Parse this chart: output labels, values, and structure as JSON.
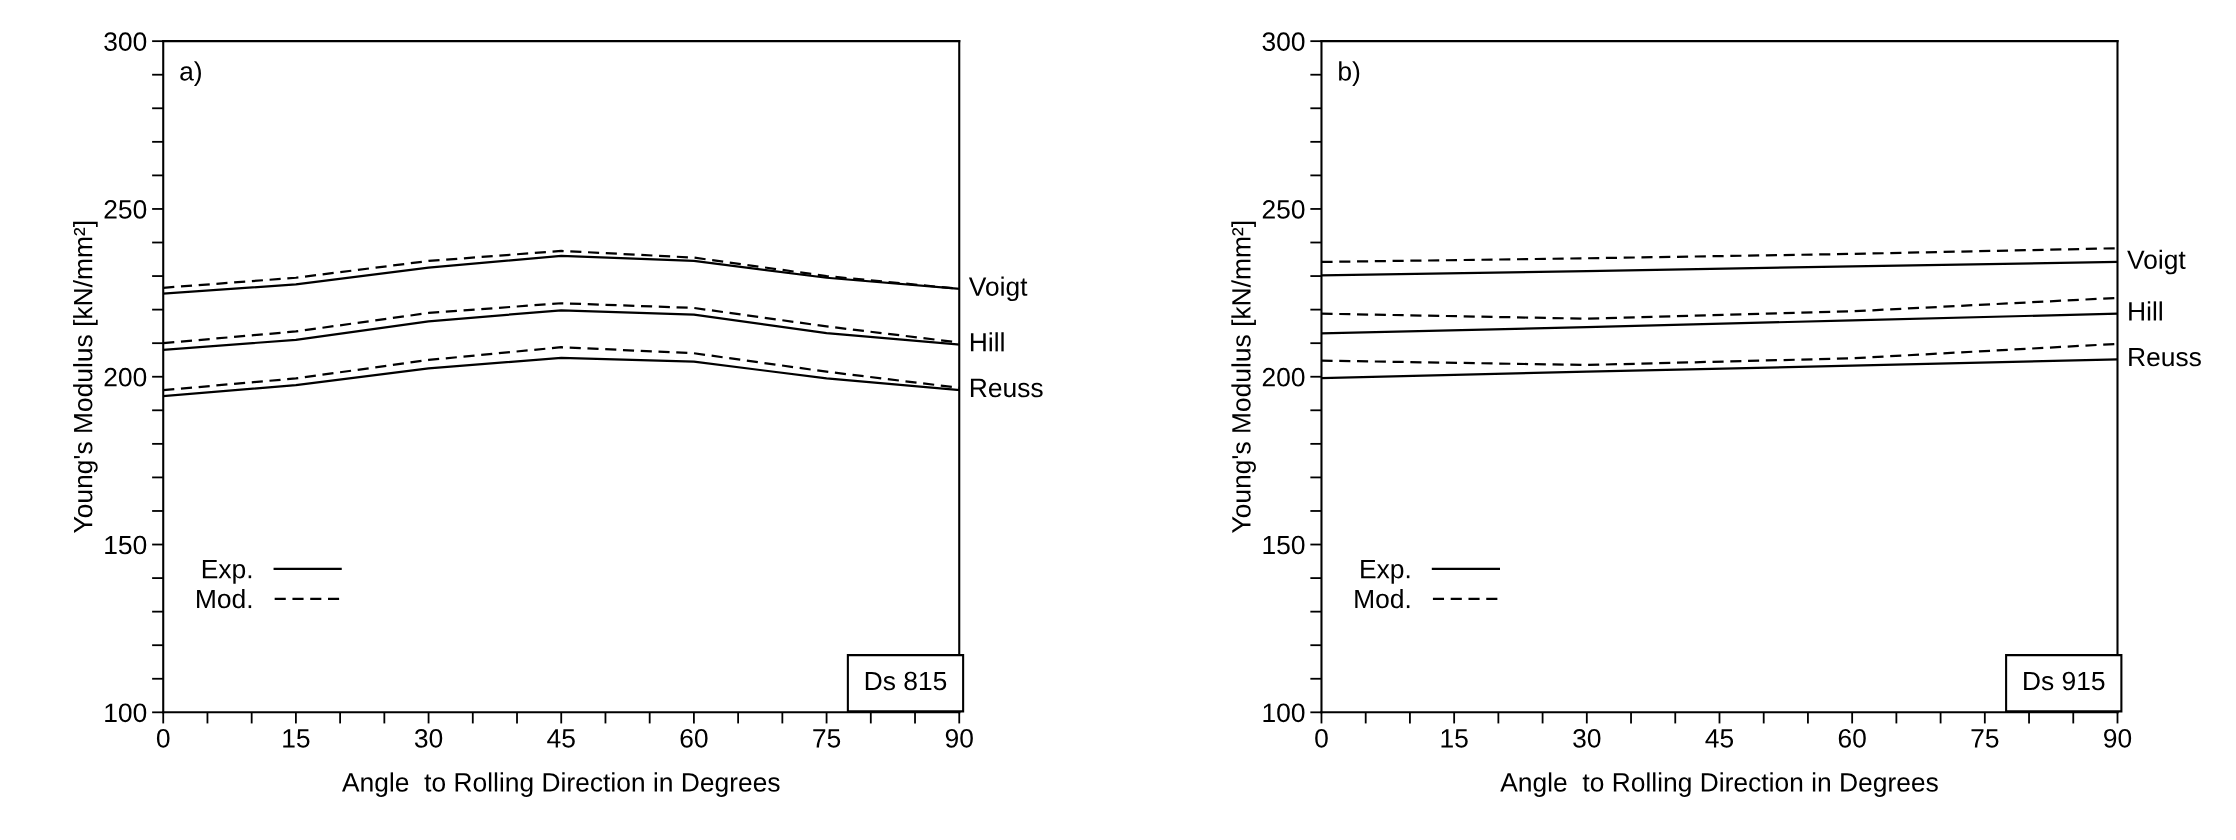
{
  "chart_data": [
    {
      "type": "line",
      "xlabel": "Angle  to Rolling Direction in Degrees",
      "ylabel": "Young's Modulus [kN/mm²]",
      "annotations": [
        "a)",
        "Exp.",
        "Mod.",
        "Ds 815"
      ],
      "legend": "right",
      "xlim": [
        0,
        90
      ],
      "ylim": [
        100,
        300
      ],
      "xticks": [
        0,
        {
          "value": 5,
          "label": null
        },
        {
          "value": 10,
          "label": null
        },
        15,
        {
          "value": 20,
          "label": null
        },
        {
          "value": 25,
          "label": null
        },
        30,
        {
          "value": 35,
          "label": null
        },
        {
          "value": 40,
          "label": null
        },
        45,
        {
          "value": 50,
          "label": null
        },
        {
          "value": 55,
          "label": null
        },
        60,
        {
          "value": 65,
          "label": null
        },
        {
          "value": 70,
          "label": null
        },
        75,
        {
          "value": 80,
          "label": null
        },
        {
          "value": 85,
          "label": null
        },
        90
      ],
      "yticks": [
        100,
        {
          "value": 110,
          "label": null
        },
        {
          "value": 120,
          "label": null
        },
        {
          "value": 130,
          "label": null
        },
        {
          "value": 140,
          "label": null
        },
        150,
        {
          "value": 160,
          "label": null
        },
        {
          "value": 170,
          "label": null
        },
        {
          "value": 180,
          "label": null
        },
        {
          "value": 190,
          "label": null
        },
        200,
        {
          "value": 210,
          "label": null
        },
        {
          "value": 220,
          "label": null
        },
        {
          "value": 230,
          "label": null
        },
        {
          "value": 240,
          "label": null
        },
        250,
        {
          "value": 260,
          "label": null
        },
        {
          "value": 270,
          "label": null
        },
        {
          "value": 280,
          "label": null
        },
        {
          "value": 290,
          "label": null
        },
        300
      ],
      "grid": false,
      "x": [
        0,
        15,
        30,
        45,
        60,
        75,
        90
      ],
      "series": [
        {
          "name": "Voigt",
          "color": "#000000",
          "line_style": "solid",
          "values": [
            224.8,
            227.5,
            232.5,
            236,
            234.5,
            229.5,
            226.2
          ]
        },
        {
          "color": "#000000",
          "line_style": "dashed",
          "values": [
            226.5,
            229.5,
            234.5,
            237.5,
            235.5,
            230,
            226.2
          ]
        },
        {
          "name": "Hill",
          "color": "#000000",
          "line_style": "solid",
          "values": [
            208,
            211,
            216.5,
            219.8,
            218.5,
            213,
            209.6
          ]
        },
        {
          "color": "#000000",
          "line_style": "dashed",
          "values": [
            210,
            213.5,
            219,
            221.9,
            220.5,
            215,
            210.2
          ]
        },
        {
          "name": "Reuss",
          "color": "#000000",
          "line_style": "solid",
          "values": [
            194.2,
            197.5,
            202.5,
            205.6,
            204.5,
            199.5,
            196
          ]
        },
        {
          "color": "#000000",
          "line_style": "dashed",
          "values": [
            196,
            199.5,
            205,
            208.8,
            207,
            201.5,
            196.7
          ]
        }
      ]
    },
    {
      "type": "line",
      "xlabel": "Angle  to Rolling Direction in Degrees",
      "ylabel": "Young's Modulus [kN/mm²]",
      "annotations": [
        "b)",
        "Exp.",
        "Mod.",
        "Ds 915"
      ],
      "legend": "right",
      "xlim": [
        0,
        90
      ],
      "ylim": [
        100,
        300
      ],
      "xticks": [
        0,
        {
          "value": 5,
          "label": null
        },
        {
          "value": 10,
          "label": null
        },
        15,
        {
          "value": 20,
          "label": null
        },
        {
          "value": 25,
          "label": null
        },
        30,
        {
          "value": 35,
          "label": null
        },
        {
          "value": 40,
          "label": null
        },
        45,
        {
          "value": 50,
          "label": null
        },
        {
          "value": 55,
          "label": null
        },
        60,
        {
          "value": 65,
          "label": null
        },
        {
          "value": 70,
          "label": null
        },
        75,
        {
          "value": 80,
          "label": null
        },
        {
          "value": 85,
          "label": null
        },
        90
      ],
      "yticks": [
        100,
        {
          "value": 110,
          "label": null
        },
        {
          "value": 120,
          "label": null
        },
        {
          "value": 130,
          "label": null
        },
        {
          "value": 140,
          "label": null
        },
        150,
        {
          "value": 160,
          "label": null
        },
        {
          "value": 170,
          "label": null
        },
        {
          "value": 180,
          "label": null
        },
        {
          "value": 190,
          "label": null
        },
        200,
        {
          "value": 210,
          "label": null
        },
        {
          "value": 220,
          "label": null
        },
        {
          "value": 230,
          "label": null
        },
        {
          "value": 240,
          "label": null
        },
        250,
        {
          "value": 260,
          "label": null
        },
        {
          "value": 270,
          "label": null
        },
        {
          "value": 280,
          "label": null
        },
        {
          "value": 290,
          "label": null
        },
        300
      ],
      "grid": false,
      "x": [
        0,
        30,
        60,
        90
      ],
      "series": [
        {
          "name": "Voigt",
          "color": "#000000",
          "line_style": "solid",
          "values": [
            230.2,
            231.5,
            232.9,
            234.2
          ]
        },
        {
          "color": "#000000",
          "line_style": "dashed",
          "values": [
            234.2,
            235.3,
            236.6,
            238.3
          ]
        },
        {
          "name": "Hill",
          "color": "#000000",
          "line_style": "solid",
          "values": [
            212.9,
            214.8,
            216.8,
            218.8
          ]
        },
        {
          "color": "#000000",
          "line_style": "dashed",
          "values": [
            218.8,
            217.3,
            219.5,
            223.5
          ]
        },
        {
          "name": "Reuss",
          "color": "#000000",
          "line_style": "solid",
          "values": [
            199.6,
            201.5,
            203.3,
            205.2
          ]
        },
        {
          "color": "#000000",
          "line_style": "dashed",
          "values": [
            204.8,
            203.5,
            205.5,
            209.8
          ]
        }
      ]
    }
  ]
}
